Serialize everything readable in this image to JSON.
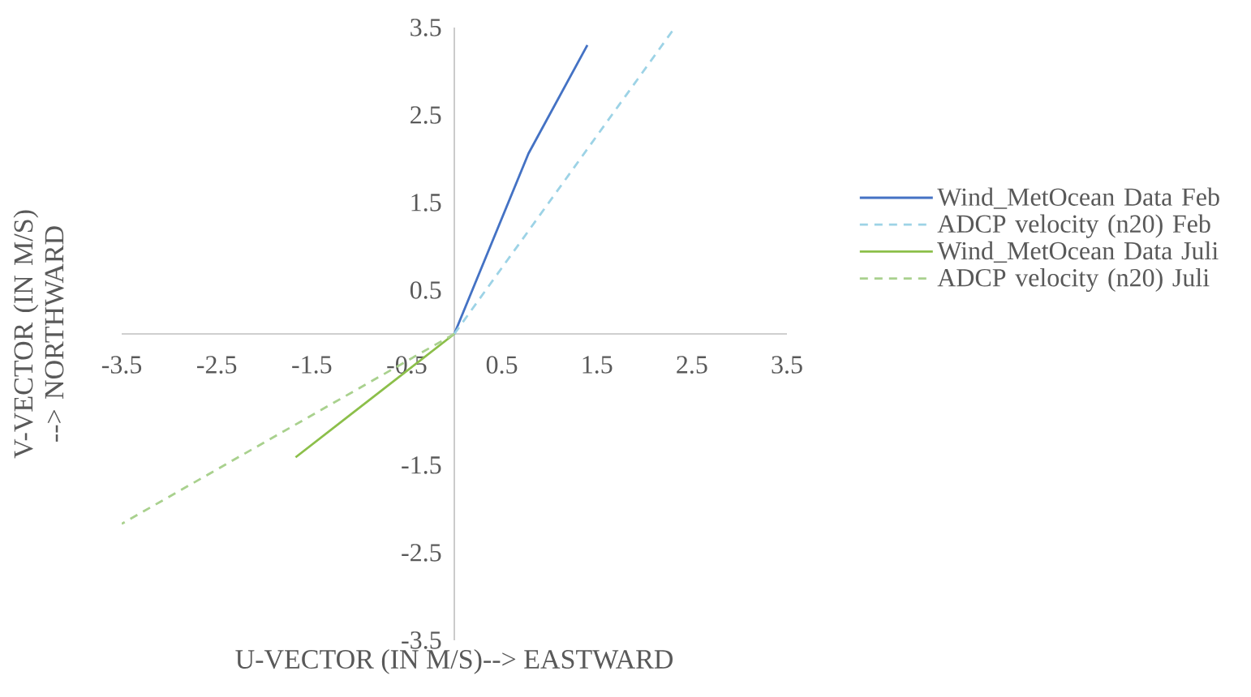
{
  "chart_data": {
    "type": "line",
    "xlabel": "U-VECTOR (IN M/S)--> EASTWARD",
    "ylabel": "V-VECTOR (IN M/S) --> NORTHWARD",
    "xlim": [
      -3.5,
      3.5
    ],
    "xticks": [
      -3.5,
      -2.5,
      -1.5,
      -0.5,
      0.5,
      1.5,
      2.5,
      3.5
    ],
    "ylim": [
      -3.5,
      3.5
    ],
    "yticks": [
      -3.5,
      -2.5,
      -1.5,
      0.5,
      1.5,
      2.5,
      3.5
    ],
    "grid": false,
    "legend": "right",
    "marker": "none",
    "series": [
      {
        "name": "Wind_MetOcean Data Feb",
        "color": "#4472c4",
        "line_style": "solid",
        "x": [
          0,
          0.78,
          1.4
        ],
        "values": [
          0,
          2.06,
          3.3
        ]
      },
      {
        "name": "ADCP velocity (n20) Feb",
        "color": "#9dd3e6",
        "line_style": "dashed",
        "x": [
          0,
          2.32
        ],
        "values": [
          0,
          3.5
        ]
      },
      {
        "name": "Wind_MetOcean Data Juli",
        "color": "#8cbf4a",
        "line_style": "solid",
        "x": [
          0,
          -1.67
        ],
        "values": [
          0,
          -1.41
        ]
      },
      {
        "name": "ADCP velocity (n20) Juli",
        "color": "#a9d18e",
        "line_style": "dashed",
        "x": [
          0,
          -3.5
        ],
        "values": [
          0,
          -2.17
        ]
      }
    ]
  }
}
